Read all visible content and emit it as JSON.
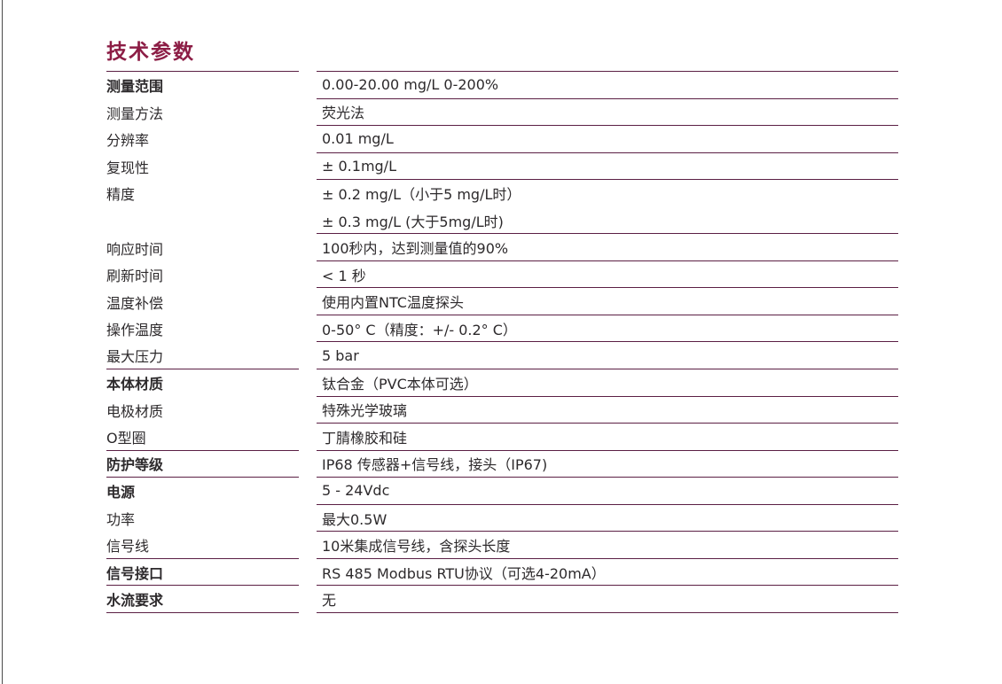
{
  "title": "技术参数",
  "colors": {
    "accent": "#8C1D45",
    "rule": "#5B1F44",
    "text": "#2D2A2C",
    "page_border": "#4A4A4A"
  },
  "table": {
    "rows": [
      {
        "label": "测量范围",
        "label_bold": true,
        "label_underline": false,
        "value": "0.00-20.00 mg/L 0-200%",
        "value_underline": true
      },
      {
        "label": "测量方法",
        "label_bold": false,
        "label_underline": false,
        "value": "荧光法",
        "value_underline": true
      },
      {
        "label": "分辨率",
        "label_bold": false,
        "label_underline": false,
        "value": "0.01 mg/L",
        "value_underline": true
      },
      {
        "label": "复现性",
        "label_bold": false,
        "label_underline": false,
        "value": "± 0.1mg/L",
        "value_underline": true
      },
      {
        "label": "精度",
        "label_bold": false,
        "label_underline": false,
        "value": "± 0.2 mg/L（小于5 mg/L时）",
        "value_underline": false
      },
      {
        "label": "",
        "label_bold": false,
        "label_underline": false,
        "value": "± 0.3 mg/L (大于5mg/L时)",
        "value_underline": true
      },
      {
        "label": "响应时间",
        "label_bold": false,
        "label_underline": false,
        "value": "100秒内，达到测量值的90%",
        "value_underline": true
      },
      {
        "label": "刷新时间",
        "label_bold": false,
        "label_underline": false,
        "value": "< 1 秒",
        "value_underline": true
      },
      {
        "label": "温度补偿",
        "label_bold": false,
        "label_underline": false,
        "value": "使用内置NTC温度探头",
        "value_underline": true
      },
      {
        "label": "操作温度",
        "label_bold": false,
        "label_underline": false,
        "value": "0-50° C（精度：+/- 0.2° C）",
        "value_underline": true
      },
      {
        "label": "最大压力",
        "label_bold": false,
        "label_underline": true,
        "value": "5 bar",
        "value_underline": true
      },
      {
        "label": "本体材质",
        "label_bold": true,
        "label_underline": false,
        "value": "钛合金（PVC本体可选）",
        "value_underline": true
      },
      {
        "label": "电极材质",
        "label_bold": false,
        "label_underline": false,
        "value": "特殊光学玻璃",
        "value_underline": true
      },
      {
        "label": "O型圈",
        "label_bold": false,
        "label_underline": true,
        "value": "丁腈橡胶和硅",
        "value_underline": true
      },
      {
        "label": "防护等级",
        "label_bold": true,
        "label_underline": true,
        "value": "IP68 传感器+信号线，接头（IP67)",
        "value_underline": true
      },
      {
        "label": "电源",
        "label_bold": true,
        "label_underline": false,
        "value": "5 - 24Vdc",
        "value_underline": true
      },
      {
        "label": "功率",
        "label_bold": false,
        "label_underline": false,
        "value": "最大0.5W",
        "value_underline": true
      },
      {
        "label": "信号线",
        "label_bold": false,
        "label_underline": true,
        "value": "10米集成信号线，含探头长度",
        "value_underline": true
      },
      {
        "label": "信号接口",
        "label_bold": true,
        "label_underline": true,
        "value": "RS 485 Modbus RTU协议（可选4-20mA）",
        "value_underline": true
      },
      {
        "label": "水流要求",
        "label_bold": true,
        "label_underline": true,
        "value": "无",
        "value_underline": true
      }
    ]
  }
}
